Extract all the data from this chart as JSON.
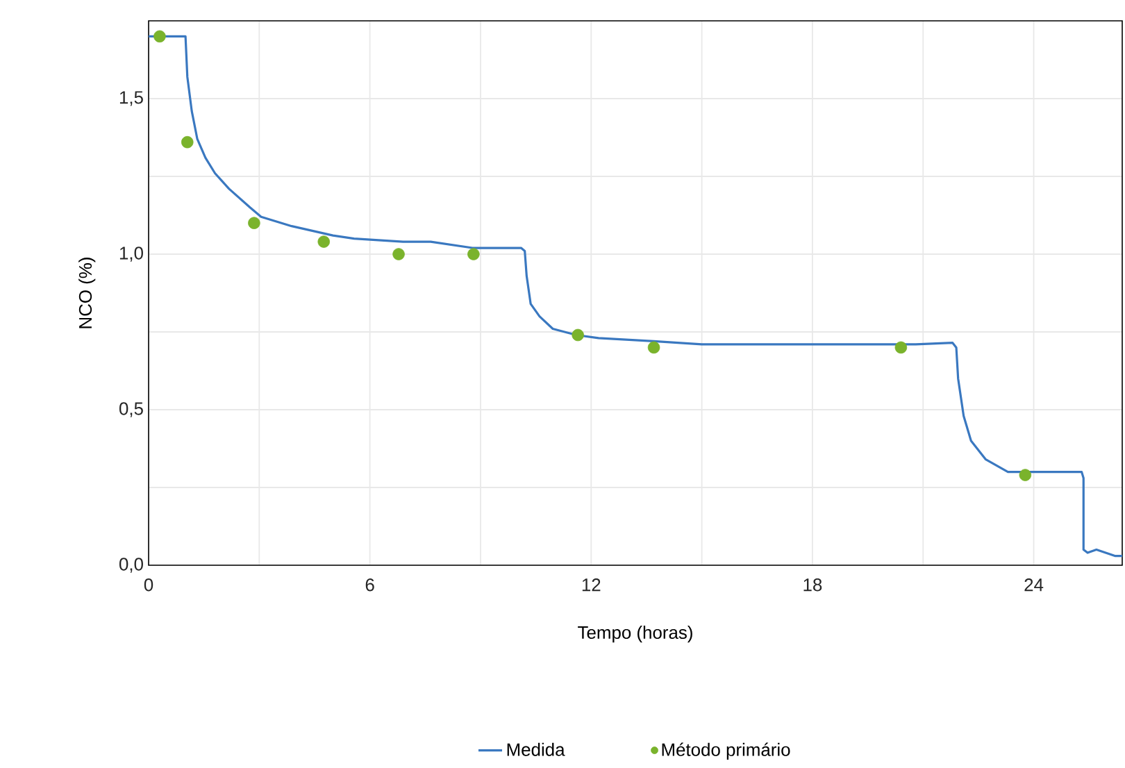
{
  "chart_data": {
    "type": "line",
    "xlabel": "Tempo (horas)",
    "ylabel": "NCO (%)",
    "xlim": [
      0,
      26.4
    ],
    "ylim": [
      0,
      1.75
    ],
    "xticks": [
      0,
      {
        "value": 3,
        "label": null
      },
      6,
      {
        "value": 9,
        "label": null
      },
      12,
      {
        "value": 15,
        "label": null
      },
      18,
      {
        "value": 21,
        "label": null
      },
      24
    ],
    "yticks": [
      {
        "value": 0,
        "label": "0,0"
      },
      {
        "value": 0.25,
        "label": null
      },
      {
        "value": 0.5,
        "label": "0,5"
      },
      {
        "value": 0.75,
        "label": null
      },
      {
        "value": 1.0,
        "label": "1,0"
      },
      {
        "value": 1.25,
        "label": null
      },
      {
        "value": 1.5,
        "label": "1,5"
      }
    ],
    "grid": true,
    "legend": "bottom",
    "series": [
      {
        "name": "Medida",
        "color": "#3a78c0",
        "marker": "none",
        "line_style": "solid",
        "x": [
          0,
          1.0,
          1.05,
          1.17,
          1.32,
          1.54,
          1.8,
          2.18,
          2.75,
          3.05,
          3.88,
          5.0,
          5.57,
          6.9,
          7.65,
          8.78,
          9.15,
          10.1,
          10.2,
          10.25,
          10.36,
          10.6,
          10.96,
          11.6,
          12.2,
          13.7,
          15.0,
          18.6,
          20.8,
          21.8,
          21.9,
          21.95,
          22.1,
          22.3,
          22.7,
          23.3,
          23.8,
          25.3,
          25.35,
          25.35,
          25.46,
          25.7,
          25.95,
          26.2,
          26.4
        ],
        "values": [
          1.7,
          1.7,
          1.57,
          1.46,
          1.37,
          1.31,
          1.26,
          1.21,
          1.15,
          1.12,
          1.09,
          1.06,
          1.05,
          1.04,
          1.04,
          1.02,
          1.02,
          1.02,
          1.01,
          0.93,
          0.84,
          0.8,
          0.76,
          0.74,
          0.73,
          0.72,
          0.71,
          0.71,
          0.71,
          0.715,
          0.7,
          0.6,
          0.48,
          0.4,
          0.34,
          0.3,
          0.3,
          0.3,
          0.28,
          0.05,
          0.04,
          0.05,
          0.04,
          0.03,
          0.03
        ]
      },
      {
        "name": "Método primário",
        "type": "scatter",
        "color": "#7ab32c",
        "marker": "circle",
        "x": [
          0.3,
          1.05,
          2.86,
          4.75,
          6.78,
          8.81,
          11.64,
          13.7,
          20.4,
          23.77
        ],
        "values": [
          1.7,
          1.36,
          1.1,
          1.04,
          1.0,
          1.0,
          0.74,
          0.7,
          0.7,
          0.29
        ]
      }
    ]
  }
}
